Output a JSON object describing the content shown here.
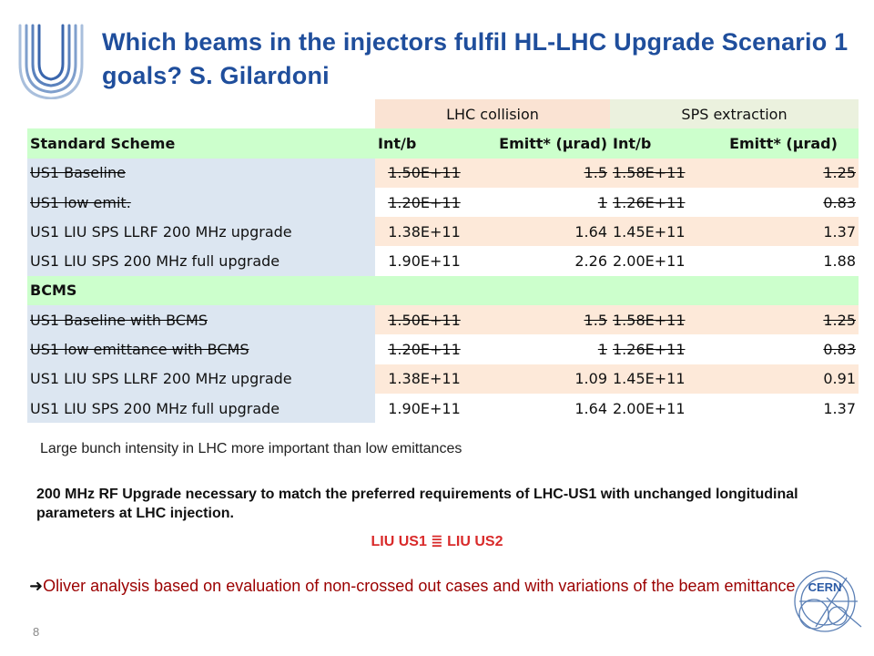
{
  "title": "Which beams in the injectors fulfil HL-LHC Upgrade Scenario 1 goals? S. Gilardoni",
  "table": {
    "group_header": {
      "lhc": "LHC collision",
      "sps": "SPS extraction"
    },
    "standard_header": {
      "label": "Standard Scheme",
      "int1": "Int/b",
      "emit1": "Emitt* (μrad)",
      "int2": "Int/b",
      "emit2": "Emitt* (μrad)"
    },
    "standard_rows": [
      {
        "label": "US1 Baseline",
        "int1": "1.50E+11",
        "emit1": "1.5",
        "int2": "1.58E+11",
        "emit2": "1.25",
        "struck": true
      },
      {
        "label": "US1 low emit.",
        "int1": "1.20E+11",
        "emit1": "1",
        "int2": "1.26E+11",
        "emit2": "0.83",
        "struck": true
      },
      {
        "label": "US1 LIU SPS LLRF 200 MHz upgrade",
        "int1": "1.38E+11",
        "emit1": "1.64",
        "int2": "1.45E+11",
        "emit2": "1.37",
        "struck": false
      },
      {
        "label": "US1 LIU SPS 200 MHz full upgrade",
        "int1": "1.90E+11",
        "emit1": "2.26",
        "int2": "2.00E+11",
        "emit2": "1.88",
        "struck": false
      }
    ],
    "bcms_header": "BCMS",
    "bcms_rows": [
      {
        "label": "US1 Baseline with BCMS",
        "int1": "1.50E+11",
        "emit1": "1.5",
        "int2": "1.58E+11",
        "emit2": "1.25",
        "struck": true
      },
      {
        "label": "US1 low emittance with BCMS",
        "int1": "1.20E+11",
        "emit1": "1",
        "int2": "1.26E+11",
        "emit2": "0.83",
        "struck": true
      },
      {
        "label": "US1 LIU SPS LLRF 200 MHz upgrade",
        "int1": "1.38E+11",
        "emit1": "1.09",
        "int2": "1.45E+11",
        "emit2": "0.91",
        "struck": false
      },
      {
        "label": "US1 LIU SPS 200 MHz full upgrade",
        "int1": "1.90E+11",
        "emit1": "1.64",
        "int2": "2.00E+11",
        "emit2": "1.37",
        "struck": false
      }
    ]
  },
  "notes": {
    "intensity": "Large bunch intensity in LHC more important than low emittances",
    "rf_upgrade": "200 MHz RF Upgrade necessary to match the preferred requirements of LHC-US1 with unchanged longitudinal parameters at LHC injection.",
    "equivalence": "LIU US1 ≣ LIU US2",
    "oliver": "Oliver analysis based on evaluation of non-crossed out cases and with variations of the beam emittance"
  },
  "page_number": "8",
  "icons": {
    "logo": "hl-lhc-u-logo",
    "arrow": "right-arrow-icon",
    "cern": "cern-logo"
  },
  "colors": {
    "title": "#1f4e9c",
    "green_header": "#ccffcc",
    "label_bg": "#dce6f1",
    "lhc_bg": "#fde9d9",
    "sps_bg": "#ebf1de",
    "highlight": "#d92a2a",
    "dark_red": "#9b0000"
  }
}
